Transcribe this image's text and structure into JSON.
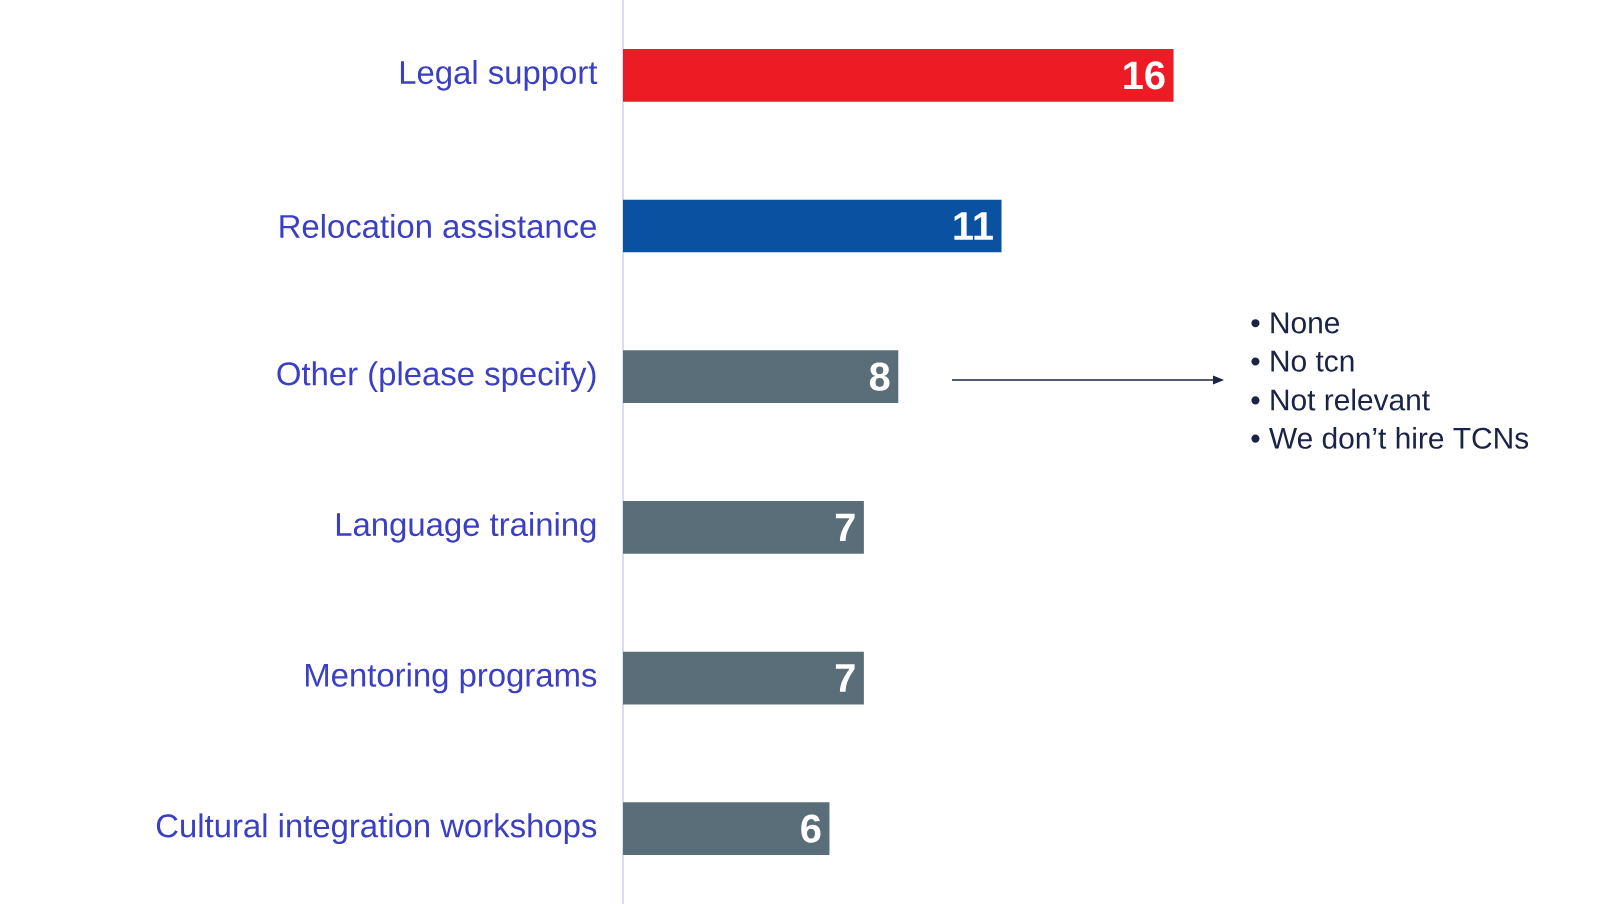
{
  "chart_data": {
    "type": "bar",
    "orientation": "horizontal",
    "categories": [
      "Legal support",
      "Relocation assistance",
      "Other (please specify)",
      "Language training",
      "Mentoring programs",
      "Cultural integration workshops"
    ],
    "values": [
      16,
      11,
      8,
      7,
      7,
      6
    ],
    "colors": [
      "#ed1c24",
      "#0a51a1",
      "#5a6e7a",
      "#5a6e7a",
      "#5a6e7a",
      "#5a6e7a"
    ],
    "data_labels": true,
    "annotations": [
      "•  None",
      "•  No tcn",
      "•  Not relevant",
      "•  We don’t hire TCNs"
    ]
  }
}
